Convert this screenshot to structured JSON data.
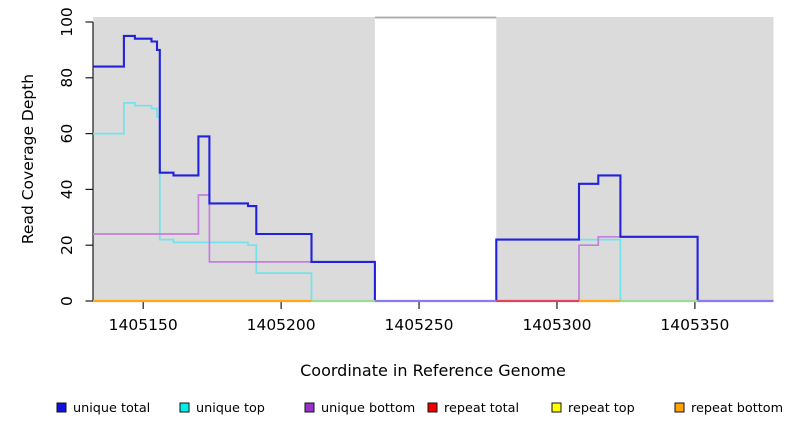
{
  "chart_data": {
    "type": "line",
    "subtype": "step-coverage",
    "title": "",
    "xlabel": "Coordinate in Reference Genome",
    "ylabel": "Read Coverage Depth",
    "xlim": [
      1405131.8,
      1405378.5
    ],
    "ylim": [
      0,
      100
    ],
    "x_ticks": [
      1405150,
      1405200,
      1405250,
      1405300,
      1405350
    ],
    "y_ticks": [
      0,
      20,
      40,
      60,
      80,
      100
    ],
    "grid": false,
    "legend_position": "bottom",
    "panel_color": "#DBDBDB",
    "gap_panel_color": "#FFFFFF",
    "gap_top_border_color": "#A9A9A9",
    "axis_color": "#1a1a1a",
    "background_regions": [
      {
        "name": "shaded-left",
        "x0": 1405131.8,
        "x1": 1405234,
        "color": "#DBDBDB"
      },
      {
        "name": "gap-white",
        "x0": 1405234,
        "x1": 1405278,
        "color": "#FFFFFF"
      },
      {
        "name": "shaded-right",
        "x0": 1405278,
        "x1": 1405378.5,
        "color": "#DBDBDB"
      }
    ],
    "series": [
      {
        "name": "unique top",
        "color": "#6FE4EC",
        "width": 1.7,
        "steps": [
          [
            1405131.8,
            60
          ],
          [
            1405143,
            71
          ],
          [
            1405147,
            70
          ],
          [
            1405153,
            69
          ],
          [
            1405155,
            66
          ],
          [
            1405156,
            22
          ],
          [
            1405161,
            21
          ],
          [
            1405188,
            20
          ],
          [
            1405191,
            10
          ],
          [
            1405211,
            0
          ],
          [
            1405278,
            22
          ],
          [
            1405323,
            0
          ]
        ]
      },
      {
        "name": "unique bottom",
        "color": "#C27FDC",
        "width": 1.7,
        "steps": [
          [
            1405131.8,
            24
          ],
          [
            1405170,
            38
          ],
          [
            1405174,
            14
          ],
          [
            1405234,
            0
          ],
          [
            1405308,
            20
          ],
          [
            1405315,
            23
          ],
          [
            1405351,
            0
          ]
        ]
      },
      {
        "name": "unique total",
        "color": "#2222DD",
        "width": 2.1,
        "steps": [
          [
            1405131.8,
            84
          ],
          [
            1405143,
            95
          ],
          [
            1405147,
            94
          ],
          [
            1405153,
            93
          ],
          [
            1405155,
            90
          ],
          [
            1405156,
            46
          ],
          [
            1405161,
            45
          ],
          [
            1405170,
            59
          ],
          [
            1405174,
            35
          ],
          [
            1405188,
            34
          ],
          [
            1405191,
            24
          ],
          [
            1405211,
            14
          ],
          [
            1405234,
            0
          ],
          [
            1405278,
            22
          ],
          [
            1405308,
            42
          ],
          [
            1405315,
            45
          ],
          [
            1405323,
            23
          ],
          [
            1405351,
            0
          ]
        ]
      },
      {
        "name": "repeat total",
        "color": "#EE0000",
        "width": 2.0,
        "steps": [
          [
            1405131.8,
            0
          ]
        ]
      },
      {
        "name": "repeat top",
        "color": "#FFFF00",
        "width": 2.0,
        "steps": [
          [
            1405131.8,
            0
          ]
        ]
      },
      {
        "name": "repeat bottom",
        "color": "#FFA500",
        "width": 2.0,
        "steps": [
          [
            1405131.8,
            0
          ]
        ]
      }
    ],
    "baseline_segments": [
      {
        "x0": 1405131.8,
        "x1": 1405211,
        "color": "#FFA41B"
      },
      {
        "x0": 1405211,
        "x1": 1405234,
        "color": "#9CDB9C"
      },
      {
        "x0": 1405234,
        "x1": 1405278,
        "color": "#897BF2"
      },
      {
        "x0": 1405278,
        "x1": 1405308,
        "color": "#E0445C"
      },
      {
        "x0": 1405308,
        "x1": 1405323,
        "color": "#FFA41B"
      },
      {
        "x0": 1405323,
        "x1": 1405351,
        "color": "#9CDB9C"
      },
      {
        "x0": 1405351,
        "x1": 1405378.5,
        "color": "#897BF2"
      }
    ]
  },
  "legend": {
    "items": [
      {
        "label": "unique total",
        "color": "#1111E0"
      },
      {
        "label": "unique top",
        "color": "#00EEEE"
      },
      {
        "label": "unique bottom",
        "color": "#9932CC"
      },
      {
        "label": "repeat total",
        "color": "#EE0000"
      },
      {
        "label": "repeat top",
        "color": "#FFFF00"
      },
      {
        "label": "repeat bottom",
        "color": "#FFA500"
      }
    ]
  }
}
